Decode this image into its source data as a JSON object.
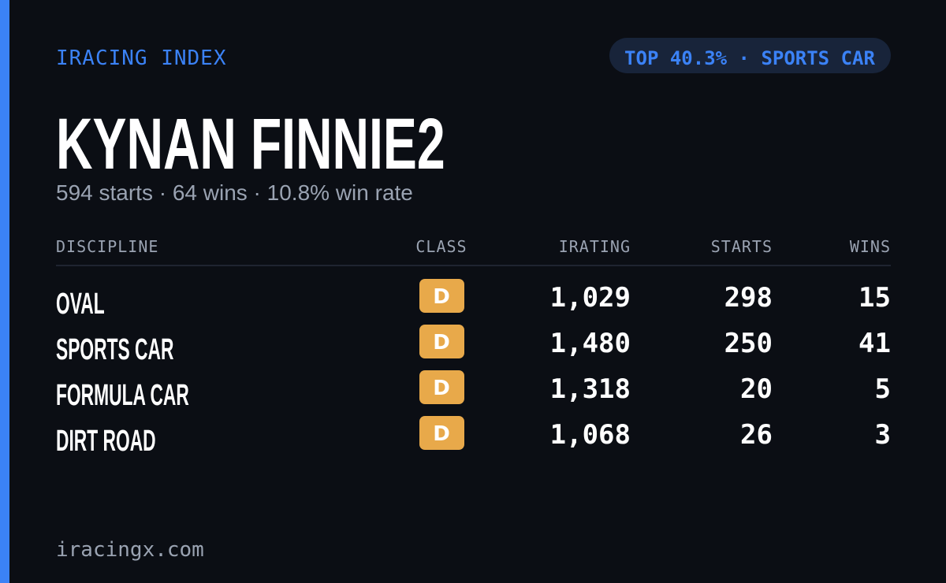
{
  "header": {
    "label": "IRACING INDEX",
    "badge": "TOP 40.3% · SPORTS CAR"
  },
  "driver": {
    "name": "KYNAN FINNIE2",
    "summary": "594 starts · 64 wins · 10.8% win rate"
  },
  "table": {
    "columns": [
      "DISCIPLINE",
      "CLASS",
      "IRATING",
      "STARTS",
      "WINS"
    ],
    "rows": [
      [
        "OVAL",
        "D",
        "1,029",
        "298",
        "15"
      ],
      [
        "SPORTS CAR",
        "D",
        "1,480",
        "250",
        "41"
      ],
      [
        "FORMULA CAR",
        "D",
        "1,318",
        "20",
        "5"
      ],
      [
        "DIRT ROAD",
        "D",
        "1,068",
        "26",
        "3"
      ]
    ]
  },
  "footer": {
    "site": "iracingx.com"
  }
}
